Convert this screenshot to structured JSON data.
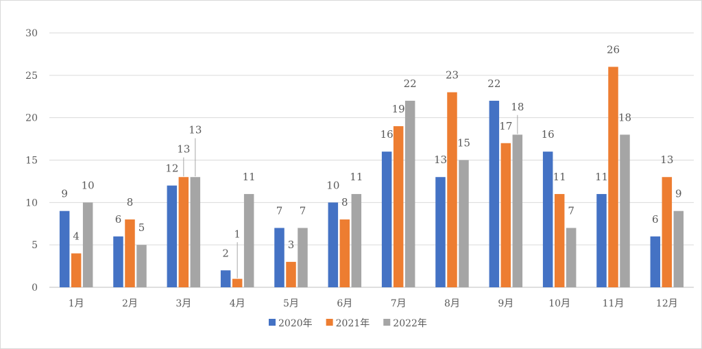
{
  "chart_data": {
    "type": "bar",
    "categories": [
      "1月",
      "2月",
      "3月",
      "4月",
      "5月",
      "6月",
      "7月",
      "8月",
      "9月",
      "10月",
      "11月",
      "12月"
    ],
    "series": [
      {
        "name": "2020年",
        "color": "#4472C4",
        "values": [
          9,
          6,
          12,
          2,
          7,
          10,
          16,
          13,
          22,
          16,
          11,
          6
        ]
      },
      {
        "name": "2021年",
        "color": "#ED7D31",
        "values": [
          4,
          8,
          13,
          1,
          3,
          8,
          19,
          23,
          17,
          11,
          26,
          13
        ]
      },
      {
        "name": "2022年",
        "color": "#A5A5A5",
        "values": [
          10,
          5,
          13,
          11,
          7,
          11,
          22,
          15,
          18,
          7,
          18,
          9
        ]
      }
    ],
    "yticks": [
      0,
      5,
      10,
      15,
      20,
      25,
      30
    ],
    "ylim": [
      0,
      30
    ],
    "grid": true,
    "legend_position": "bottom",
    "data_labels": true
  }
}
